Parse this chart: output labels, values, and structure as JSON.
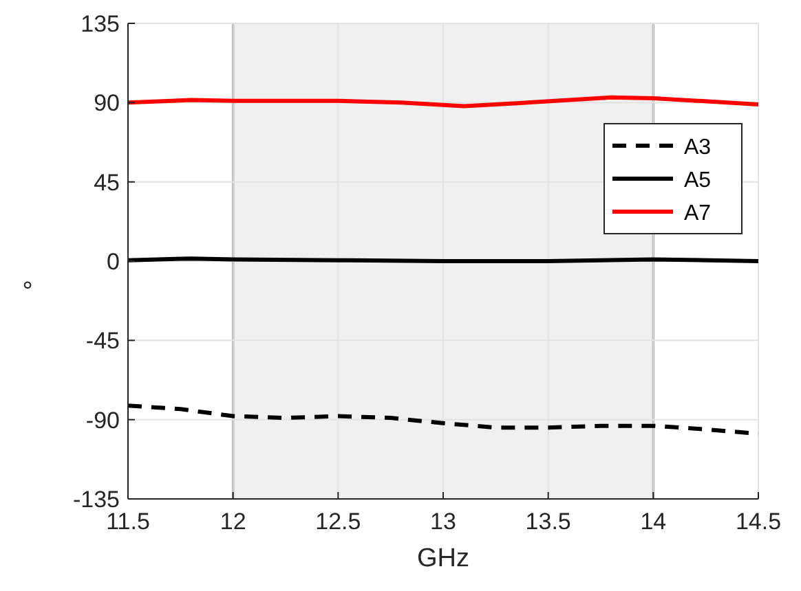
{
  "chart_data": {
    "type": "line",
    "xlabel": "GHz",
    "ylabel": "°",
    "xlim": [
      11.5,
      14.5
    ],
    "xticks": [
      11.5,
      12,
      12.5,
      13,
      13.5,
      14,
      14.5
    ],
    "ylim": [
      -135,
      135
    ],
    "yticks": [
      -135,
      -90,
      -45,
      0,
      45,
      90,
      135
    ],
    "grid": true,
    "legend": "top right",
    "bands": [
      {
        "axis": "x",
        "from": 12,
        "to": 14,
        "color": "#f0f0f0"
      }
    ],
    "series": [
      {
        "name": "A3",
        "color": "#000000",
        "line_style": "dashed",
        "x": [
          11.5,
          11.75,
          12,
          12.25,
          12.5,
          12.75,
          13,
          13.25,
          13.5,
          13.75,
          14,
          14.25,
          14.5
        ],
        "values": [
          -82,
          -84,
          -88,
          -89,
          -88,
          -89,
          -92,
          -94.5,
          -94.5,
          -93.5,
          -93.5,
          -95.5,
          -98
        ]
      },
      {
        "name": "A5",
        "color": "#000000",
        "line_style": "solid",
        "x": [
          11.5,
          11.8,
          12,
          12.5,
          13,
          13.5,
          14,
          14.5
        ],
        "values": [
          0.5,
          1.5,
          1,
          0.5,
          0,
          0,
          1,
          0
        ]
      },
      {
        "name": "A7",
        "color": "#ff0000",
        "line_style": "solid",
        "x": [
          11.5,
          11.8,
          12,
          12.5,
          12.8,
          13.1,
          13.4,
          13.8,
          14,
          14.5
        ],
        "values": [
          90,
          91.5,
          91,
          91,
          90,
          88,
          90,
          93,
          92.5,
          89
        ]
      }
    ]
  }
}
